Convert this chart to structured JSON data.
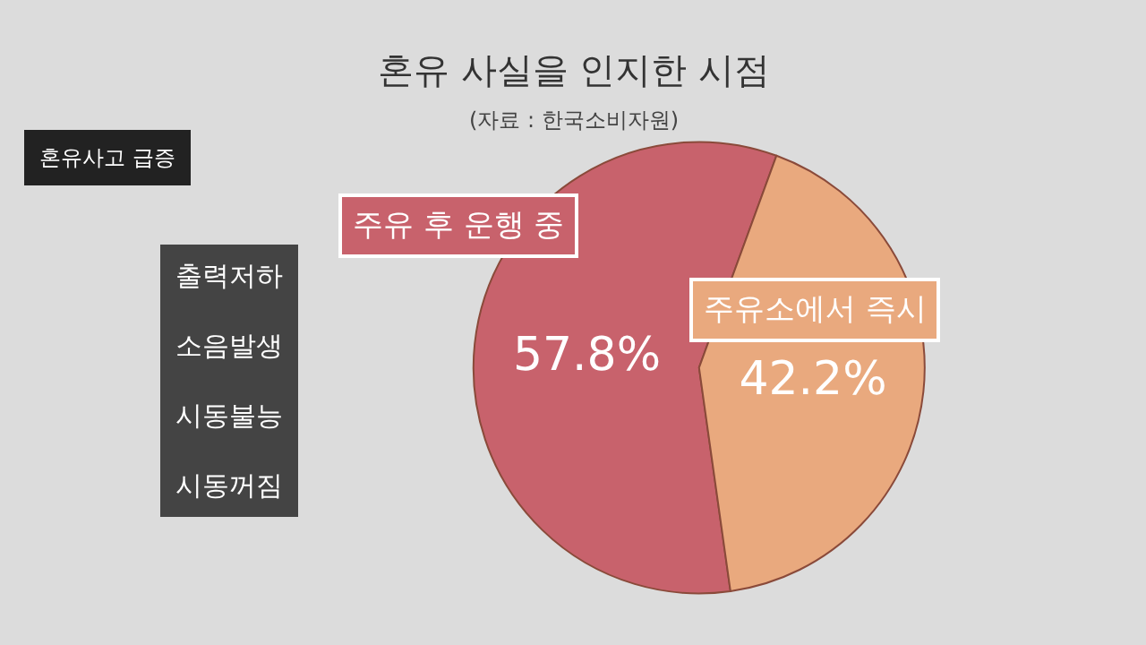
{
  "chart_data": {
    "type": "pie",
    "title": "혼유 사실을 인지한 시점",
    "subtitle": "(자료 : 한국소비자원)",
    "categories": [
      "주유 후 운행 중",
      "주유소에서 즉시"
    ],
    "values": [
      57.8,
      42.2
    ],
    "value_labels": [
      "57.8%",
      "42.2%"
    ],
    "colors": [
      "#c8626c",
      "#e9a97e"
    ],
    "annotations": [
      "혼유사고 급증",
      "출력저하\n소음발생\n시동불능\n시동꺼짐"
    ],
    "legend": false
  }
}
